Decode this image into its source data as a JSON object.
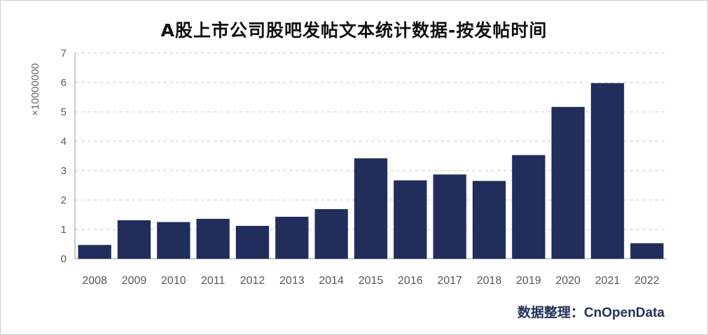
{
  "header": {
    "title": "A股上市公司股吧发帖文本统计数据-按发帖时间"
  },
  "footer": {
    "credit_label": "数据整理：",
    "credit_name": "CnOpenData"
  },
  "chart_data": {
    "type": "bar",
    "title": "A股上市公司股吧发帖文本统计数据-按发帖时间",
    "xlabel": "",
    "ylabel": "×10000000",
    "categories": [
      "2008",
      "2009",
      "2010",
      "2011",
      "2012",
      "2013",
      "2014",
      "2015",
      "2016",
      "2017",
      "2018",
      "2019",
      "2020",
      "2021",
      "2022"
    ],
    "values": [
      0.47,
      1.31,
      1.25,
      1.36,
      1.12,
      1.43,
      1.69,
      3.42,
      2.67,
      2.87,
      2.65,
      3.53,
      5.17,
      5.98,
      0.53
    ],
    "ylim": [
      0,
      7
    ],
    "yticks": [
      0,
      1,
      2,
      3,
      4,
      5,
      6,
      7
    ],
    "grid": true,
    "legend": "none",
    "colors": {
      "bar": "#212e5c",
      "grid": "#cccccc",
      "axis": "#bbbbbb",
      "tick_text": "#595959"
    }
  }
}
